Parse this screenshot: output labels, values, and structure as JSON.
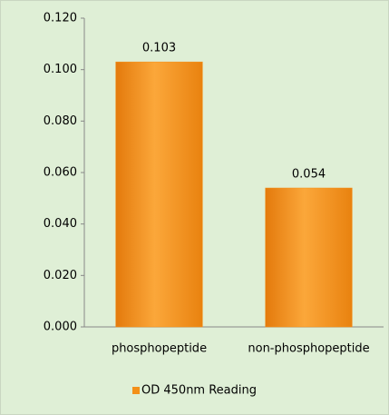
{
  "chart_data": {
    "type": "bar",
    "categories": [
      "phosphopeptide",
      "non-phosphopeptide"
    ],
    "series": [
      {
        "name": "OD 450nm Reading",
        "color": "#f39019",
        "values": [
          0.103,
          0.054
        ]
      }
    ],
    "ylim": [
      0,
      0.12
    ],
    "yticks": [
      {
        "value": 0,
        "label": "0.000"
      },
      {
        "value": 0.02,
        "label": "0.020"
      },
      {
        "value": 0.04,
        "label": "0.040"
      },
      {
        "value": 0.06,
        "label": "0.060"
      },
      {
        "value": 0.08,
        "label": "0.080"
      },
      {
        "value": 0.1,
        "label": "0.100"
      },
      {
        "value": 0.12,
        "label": "0.120"
      }
    ],
    "grid": false,
    "legend": "bottom"
  }
}
